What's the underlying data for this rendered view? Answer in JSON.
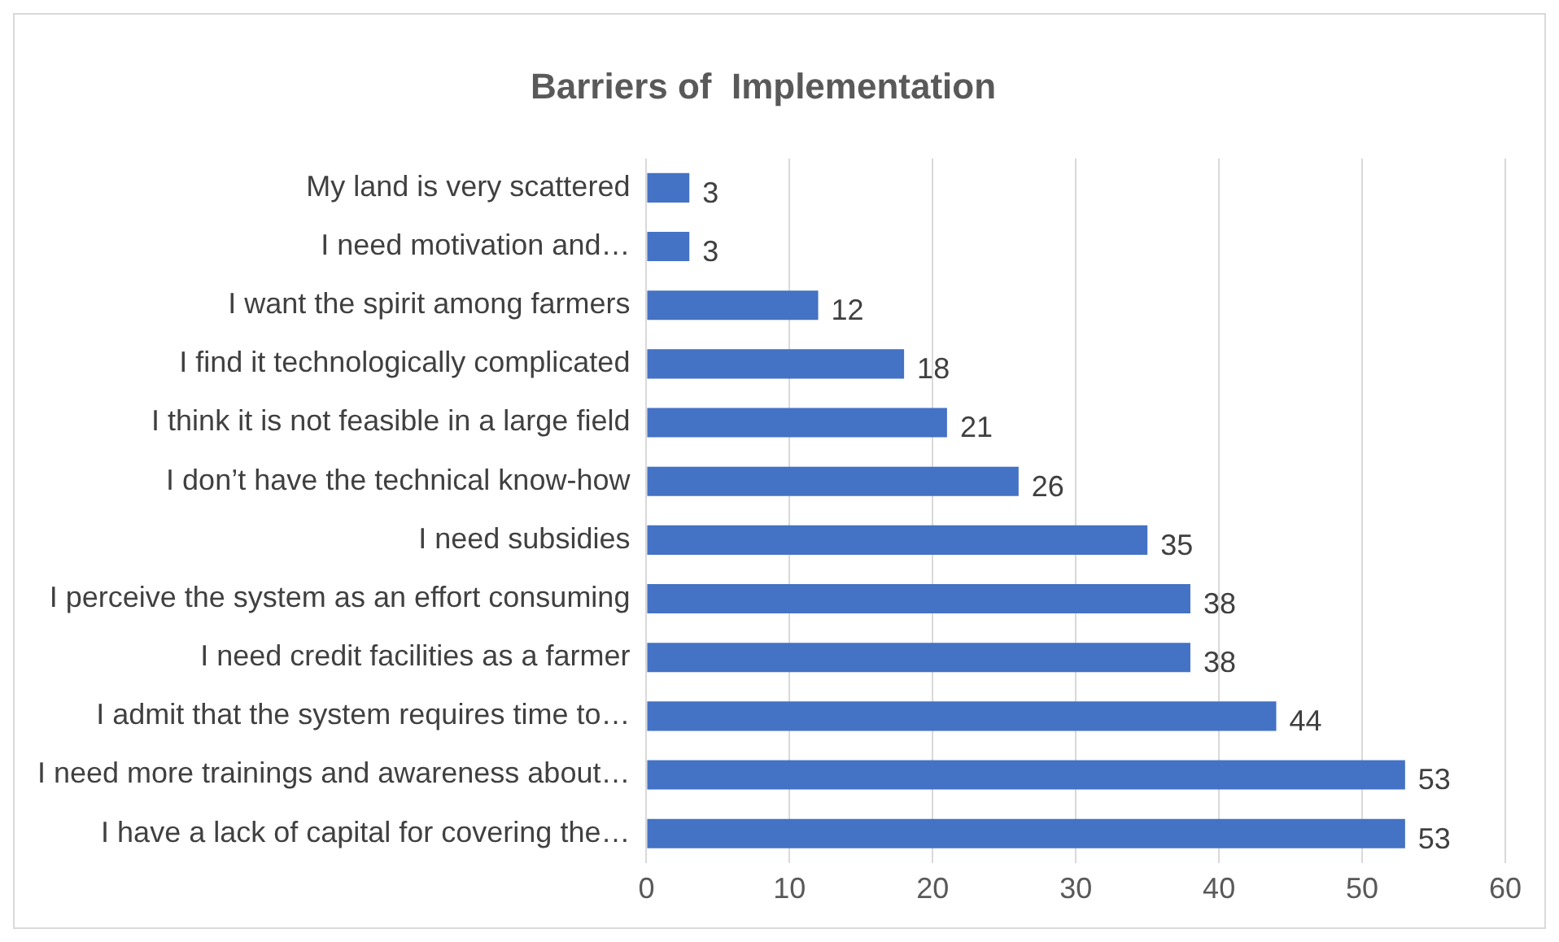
{
  "chart_data": {
    "type": "bar",
    "orientation": "horizontal",
    "title": "Barriers of  Implementation",
    "categories": [
      "My land is very scattered",
      "I need motivation and…",
      "I want the spirit among farmers",
      "I find it technologically complicated",
      "I think it is not feasible in a large field",
      "I don’t have the technical know-how",
      "I need subsidies",
      "I perceive the system as an effort consuming",
      "I need credit facilities as a farmer",
      "I admit that the system requires time to…",
      "I need more trainings and awareness about…",
      "I have a lack of capital for covering the…"
    ],
    "values": [
      3,
      3,
      12,
      18,
      21,
      26,
      35,
      38,
      38,
      44,
      53,
      53
    ],
    "color": "#4472c4",
    "xlim": [
      0,
      60
    ],
    "xticks": [
      0,
      10,
      20,
      30,
      40,
      50,
      60
    ],
    "grid": "x",
    "data_labels": true
  }
}
